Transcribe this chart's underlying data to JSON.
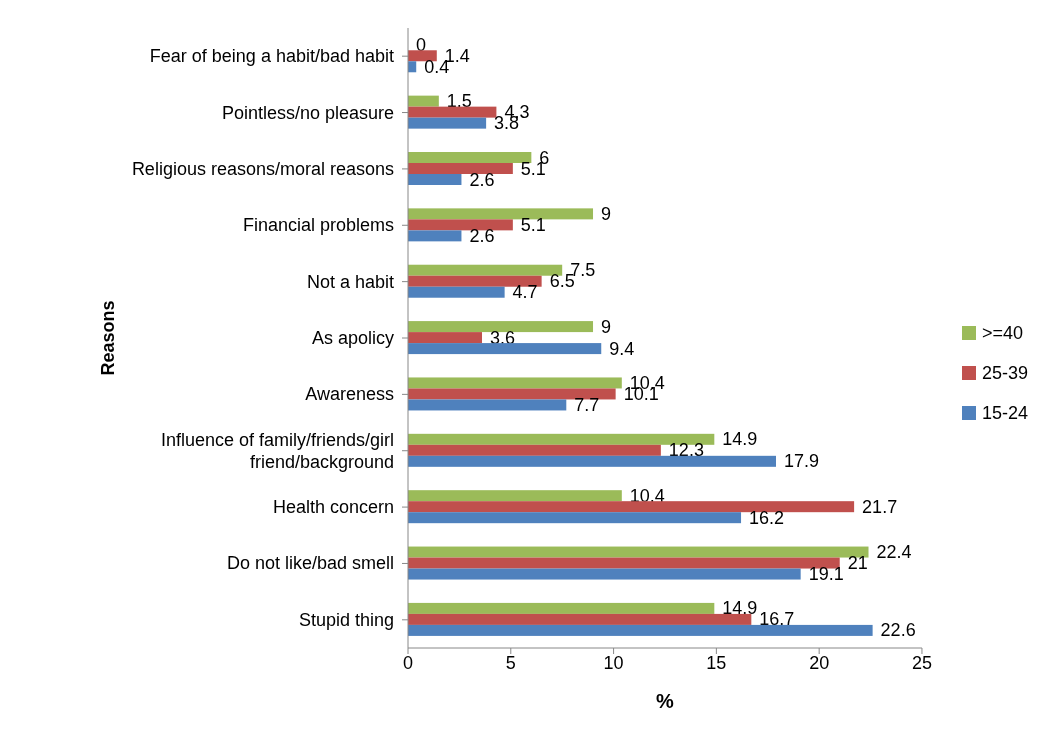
{
  "chart_data": {
    "type": "bar",
    "orientation": "horizontal",
    "xlabel": "%",
    "ylabel": "Reasons",
    "categories": [
      "Fear of being a habit/bad habit",
      "Pointless/no pleasure",
      "Religious reasons/moral reasons",
      "Financial problems",
      "Not a habit",
      "As apolicy",
      "Awareness",
      "Influence of family/friends/girl friend/background",
      "Health concern",
      "Do not like/bad smell",
      "Stupid thing"
    ],
    "series": [
      {
        "name": ">=40",
        "color": "#9bbb59",
        "values": [
          0,
          1.5,
          6,
          9,
          7.5,
          9,
          10.4,
          14.9,
          10.4,
          22.4,
          14.9
        ]
      },
      {
        "name": "25-39",
        "color": "#c0504d",
        "values": [
          1.4,
          4.3,
          5.1,
          5.1,
          6.5,
          3.6,
          10.1,
          12.3,
          21.7,
          21,
          16.7
        ]
      },
      {
        "name": "15-24",
        "color": "#4f81bd",
        "values": [
          0.4,
          3.8,
          2.6,
          2.6,
          4.7,
          9.4,
          7.7,
          17.9,
          16.2,
          19.1,
          22.6
        ]
      }
    ],
    "xlim": [
      0,
      25
    ],
    "xticks": [
      0,
      5,
      10,
      15,
      20,
      25
    ],
    "grid": false,
    "legend": "right",
    "data_labels": true
  }
}
